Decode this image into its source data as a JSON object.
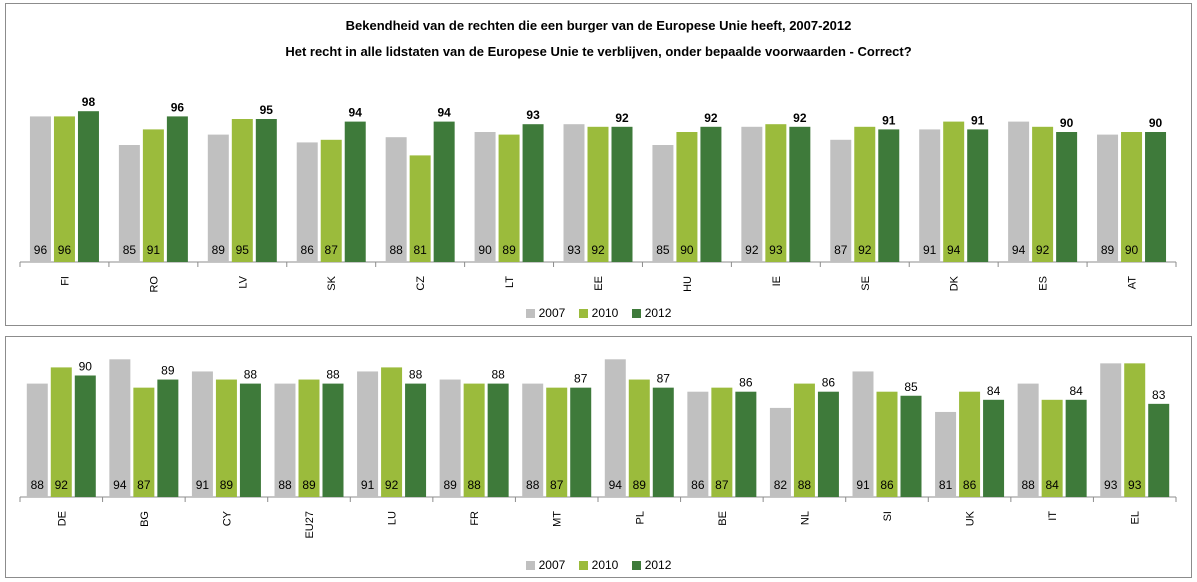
{
  "title_line1": "Bekendheid van de rechten die een burger van de Europese Unie heeft, 2007-2012",
  "title_line2": "Het recht in alle lidstaten van de Europese Unie te verblijven, onder bepaalde voorwaarden - Correct?",
  "colors": {
    "2007": "#c0c0c0",
    "2010": "#9bbb3c",
    "2012": "#3e7a3a"
  },
  "legend": [
    "2007",
    "2010",
    "2012"
  ],
  "chart_data": [
    {
      "type": "bar",
      "title": "Bekendheid van de rechten die een burger van de Europese Unie heeft, 2007-2012 / Het recht in alle lidstaten van de Europese Unie te verblijven, onder bepaalde voorwaarden - Correct?",
      "categories": [
        "FI",
        "RO",
        "LV",
        "SK",
        "CZ",
        "LT",
        "EE",
        "HU",
        "IE",
        "SE",
        "DK",
        "ES",
        "AT"
      ],
      "series": [
        {
          "name": "2007",
          "values": [
            96,
            85,
            89,
            86,
            88,
            90,
            93,
            85,
            92,
            87,
            91,
            94,
            89
          ]
        },
        {
          "name": "2010",
          "values": [
            96,
            91,
            95,
            87,
            81,
            89,
            92,
            90,
            93,
            92,
            94,
            92,
            90
          ]
        },
        {
          "name": "2012",
          "values": [
            98,
            96,
            95,
            94,
            94,
            93,
            92,
            92,
            92,
            91,
            91,
            90,
            90
          ]
        }
      ],
      "legend_position": "bottom",
      "grid": false
    },
    {
      "type": "bar",
      "categories": [
        "DE",
        "BG",
        "CY",
        "EU27",
        "LU",
        "FR",
        "MT",
        "PL",
        "BE",
        "NL",
        "SI",
        "UK",
        "IT",
        "EL"
      ],
      "series": [
        {
          "name": "2007",
          "values": [
            88,
            94,
            91,
            88,
            91,
            89,
            88,
            94,
            86,
            82,
            91,
            81,
            88,
            93
          ]
        },
        {
          "name": "2010",
          "values": [
            92,
            87,
            89,
            89,
            92,
            88,
            87,
            89,
            87,
            88,
            86,
            86,
            84,
            93
          ]
        },
        {
          "name": "2012",
          "values": [
            90,
            89,
            88,
            88,
            88,
            88,
            87,
            87,
            86,
            86,
            85,
            84,
            84,
            83
          ]
        }
      ],
      "legend_position": "bottom",
      "grid": false
    }
  ]
}
